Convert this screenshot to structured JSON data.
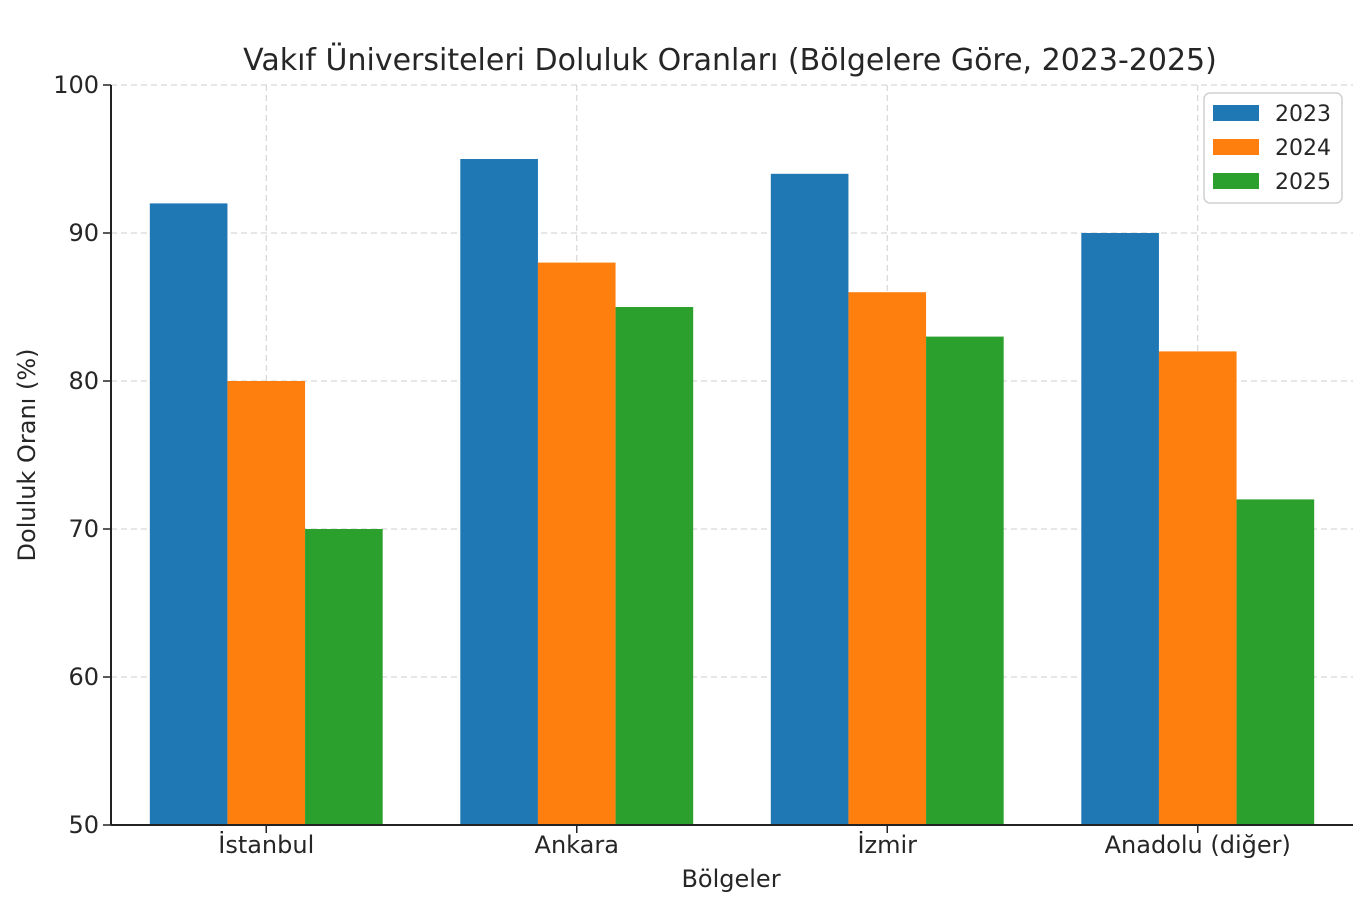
{
  "chart_data": {
    "type": "bar",
    "title": "Vakıf Üniversiteleri Doluluk Oranları (Bölgelere Göre, 2023-2025)",
    "xlabel": "Bölgeler",
    "ylabel": "Doluluk Oranı (%)",
    "categories": [
      "İstanbul",
      "Ankara",
      "İzmir",
      "Anadolu (diğer)"
    ],
    "series": [
      {
        "name": "2023",
        "color": "#1f77b4",
        "values": [
          92,
          95,
          94,
          90
        ]
      },
      {
        "name": "2024",
        "color": "#ff7f0e",
        "values": [
          80,
          88,
          86,
          82
        ]
      },
      {
        "name": "2025",
        "color": "#2ca02c",
        "values": [
          70,
          85,
          83,
          72
        ]
      }
    ],
    "ylim": [
      50,
      100
    ],
    "yticks": [
      50,
      60,
      70,
      80,
      90,
      100
    ],
    "grid": true,
    "legend_position": "top-right"
  }
}
